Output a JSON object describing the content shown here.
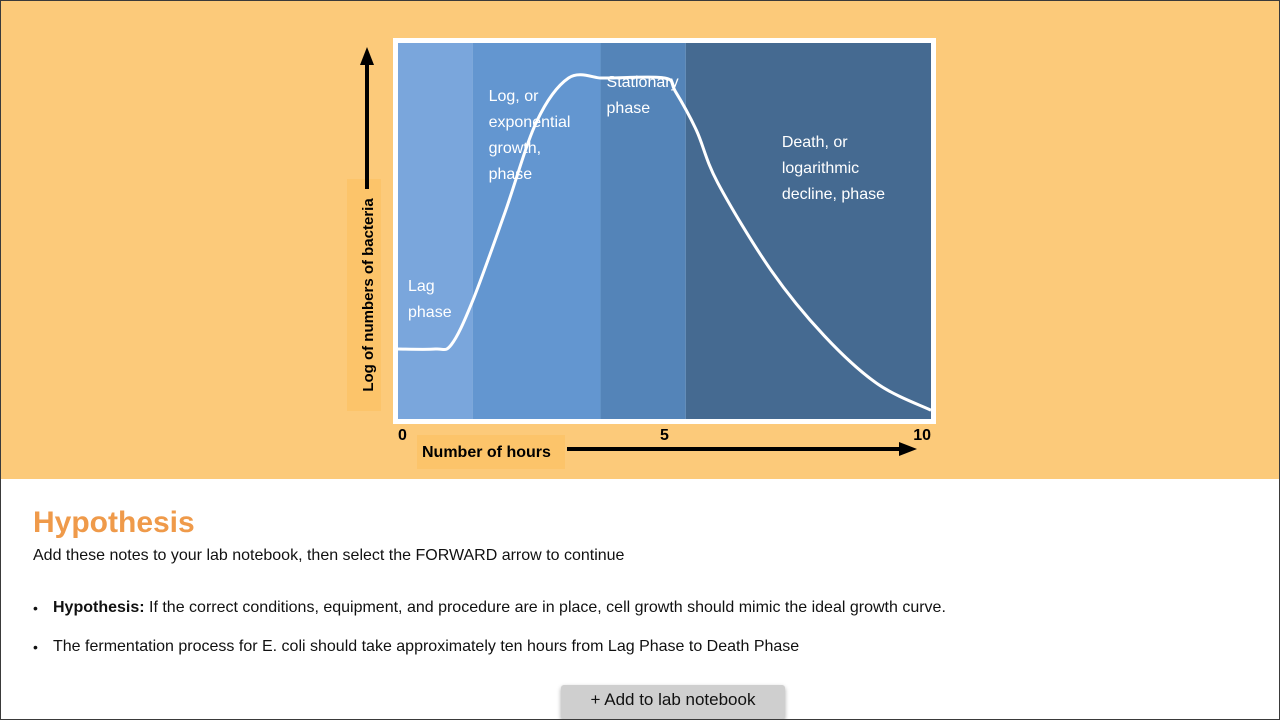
{
  "chart_data": {
    "type": "line",
    "title": "",
    "xlabel": "Number of hours",
    "ylabel": "Log of numbers of bacteria",
    "xlim": [
      0,
      10
    ],
    "x_ticks": [
      "0",
      "5",
      "10"
    ],
    "x": [
      0,
      0.7,
      1.0,
      1.4,
      2.0,
      2.6,
      3.2,
      3.8,
      4.0,
      5.0,
      5.2,
      5.6,
      6.0,
      7.0,
      8.0,
      9.0,
      10.0
    ],
    "y": [
      1.6,
      1.6,
      1.7,
      2.7,
      4.7,
      6.8,
      7.8,
      7.8,
      7.8,
      7.8,
      7.5,
      6.6,
      5.4,
      3.4,
      1.9,
      0.8,
      0.2
    ],
    "ylim": [
      0,
      8.6
    ],
    "phases": [
      {
        "name": "Lag phase",
        "lines": [
          "Lag",
          "phase"
        ],
        "start": 0,
        "end": 1.4,
        "color": "#7aa6dc"
      },
      {
        "name": "Log, or exponential growth, phase",
        "lines": [
          "Log, or",
          "exponential",
          "growth,",
          "phase"
        ],
        "start": 1.4,
        "end": 3.8,
        "color": "#6396d0"
      },
      {
        "name": "Stationary phase",
        "lines": [
          "Stationary",
          "phase"
        ],
        "start": 3.8,
        "end": 5.4,
        "color": "#5484b8"
      },
      {
        "name": "Death, or logarithmic decline, phase",
        "lines": [
          "Death, or",
          "logarithmic",
          "decline, phase"
        ],
        "start": 5.4,
        "end": 10,
        "color": "#456a91"
      }
    ],
    "grid": false,
    "legend": "none"
  },
  "content": {
    "heading": "Hypothesis",
    "instructions": "Add these notes to your lab notebook, then select the FORWARD arrow to continue",
    "notes": [
      {
        "label": "Hypothesis:",
        "text": " If the correct conditions, equipment, and procedure are in place, cell growth should mimic the ideal growth curve."
      },
      {
        "label": "",
        "text": "The fermentation process for E. coli should take approximately ten hours from Lag Phase to Death Phase"
      }
    ],
    "add_button_label": "+ Add to lab notebook"
  },
  "colors": {
    "hero_background": "#fcca7a",
    "heading": "#ef9a4a",
    "axis_label_highlight": "#fcc46a",
    "curve": "#ffffff"
  }
}
